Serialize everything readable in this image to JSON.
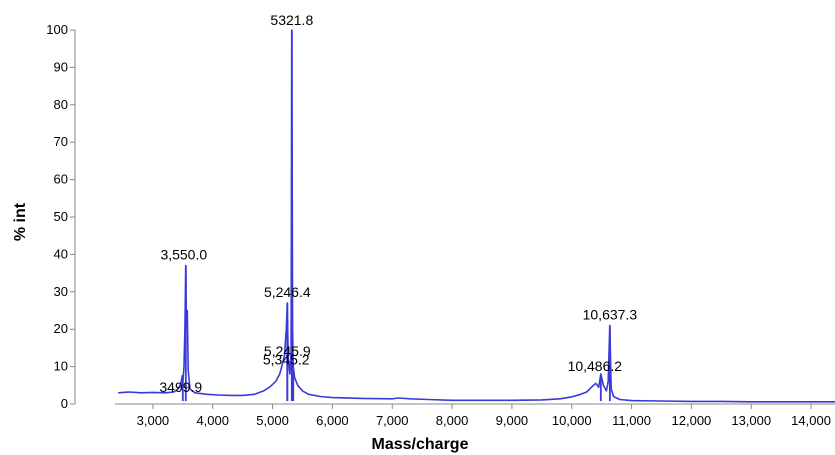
{
  "chart_data": {
    "type": "line",
    "title": "",
    "xlabel": "Mass/charge",
    "ylabel": "% int",
    "xlim": [
      2400,
      14400
    ],
    "ylim": [
      0,
      100
    ],
    "grid": false,
    "series_color": "#3a3ad8",
    "x_ticks": [
      "3,000",
      "4,000",
      "5,000",
      "6,000",
      "7,000",
      "8,000",
      "9,000",
      "10,000",
      "11,000",
      "12,000",
      "13,000",
      "14,000"
    ],
    "x_tick_values": [
      3000,
      4000,
      5000,
      6000,
      7000,
      8000,
      9000,
      10000,
      11000,
      12000,
      13000,
      14000
    ],
    "y_ticks": [
      "0",
      "10",
      "20",
      "30",
      "40",
      "50",
      "60",
      "70",
      "80",
      "90",
      "100"
    ],
    "y_tick_values": [
      0,
      10,
      20,
      30,
      40,
      50,
      60,
      70,
      80,
      90,
      100
    ],
    "peaks": [
      {
        "label": "3499.9",
        "mz": 3499.9,
        "intensity": 7.0
      },
      {
        "label": "3,550.0",
        "mz": 3550.0,
        "intensity": 37.0
      },
      {
        "label": "5,245.9",
        "mz": 5245.9,
        "intensity": 16.0
      },
      {
        "label": "5,246.4",
        "mz": 5246.4,
        "intensity": 27.0
      },
      {
        "label": "5321.8",
        "mz": 5321.8,
        "intensity": 100.0
      },
      {
        "label": "5,345.2",
        "mz": 5345.2,
        "intensity": 10.0
      },
      {
        "label": "10,486.2",
        "mz": 10486.2,
        "intensity": 8.0
      },
      {
        "label": "10,637.3",
        "mz": 10637.3,
        "intensity": 21.0
      }
    ],
    "spectrum": [
      [
        2420,
        3.0
      ],
      [
        2600,
        3.2
      ],
      [
        2800,
        3.0
      ],
      [
        3000,
        3.1
      ],
      [
        3200,
        3.0
      ],
      [
        3350,
        3.2
      ],
      [
        3420,
        4.0
      ],
      [
        3470,
        5.5
      ],
      [
        3490,
        7.5
      ],
      [
        3500,
        6.0
      ],
      [
        3520,
        10.0
      ],
      [
        3535,
        20.0
      ],
      [
        3550,
        37.0
      ],
      [
        3560,
        20.0
      ],
      [
        3575,
        25.0
      ],
      [
        3590,
        9.0
      ],
      [
        3620,
        4.0
      ],
      [
        3700,
        3.0
      ],
      [
        3900,
        2.6
      ],
      [
        4100,
        2.4
      ],
      [
        4300,
        2.3
      ],
      [
        4500,
        2.3
      ],
      [
        4700,
        2.6
      ],
      [
        4850,
        3.5
      ],
      [
        4950,
        4.5
      ],
      [
        5050,
        6.0
      ],
      [
        5120,
        8.0
      ],
      [
        5170,
        11.0
      ],
      [
        5200,
        13.0
      ],
      [
        5230,
        20.0
      ],
      [
        5246,
        27.0
      ],
      [
        5262,
        12.0
      ],
      [
        5290,
        8.0
      ],
      [
        5310,
        14.0
      ],
      [
        5322,
        100.0
      ],
      [
        5334,
        20.0
      ],
      [
        5345,
        10.0
      ],
      [
        5370,
        7.0
      ],
      [
        5420,
        5.0
      ],
      [
        5500,
        3.5
      ],
      [
        5600,
        2.6
      ],
      [
        5800,
        2.0
      ],
      [
        6000,
        1.7
      ],
      [
        6500,
        1.5
      ],
      [
        7000,
        1.4
      ],
      [
        7100,
        1.6
      ],
      [
        7300,
        1.4
      ],
      [
        7600,
        1.2
      ],
      [
        8000,
        1.0
      ],
      [
        8500,
        1.0
      ],
      [
        9000,
        1.0
      ],
      [
        9500,
        1.1
      ],
      [
        9800,
        1.4
      ],
      [
        10000,
        1.9
      ],
      [
        10150,
        2.6
      ],
      [
        10250,
        3.2
      ],
      [
        10330,
        4.5
      ],
      [
        10400,
        5.5
      ],
      [
        10450,
        4.5
      ],
      [
        10486,
        8.0
      ],
      [
        10530,
        5.0
      ],
      [
        10580,
        3.5
      ],
      [
        10610,
        6.0
      ],
      [
        10637,
        21.0
      ],
      [
        10660,
        4.0
      ],
      [
        10700,
        2.0
      ],
      [
        10800,
        1.2
      ],
      [
        11000,
        0.9
      ],
      [
        11500,
        0.8
      ],
      [
        12000,
        0.7
      ],
      [
        12500,
        0.7
      ],
      [
        13000,
        0.6
      ],
      [
        13500,
        0.6
      ],
      [
        14000,
        0.6
      ],
      [
        14400,
        0.6
      ]
    ]
  }
}
